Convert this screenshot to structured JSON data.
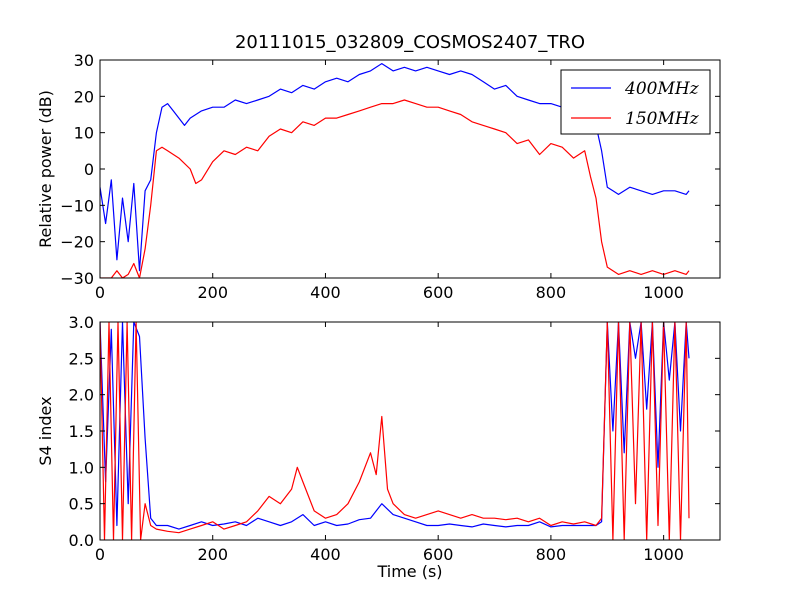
{
  "figure": {
    "title": "20111015_032809_COSMOS2407_TRO"
  },
  "chart_data": [
    {
      "type": "line",
      "title": "20111015_032809_COSMOS2407_TRO",
      "xlabel": "",
      "ylabel": "Relative power (dB)",
      "xlim": [
        0,
        1100
      ],
      "ylim": [
        -30,
        30
      ],
      "xticks": [
        0,
        200,
        400,
        600,
        800,
        1000
      ],
      "yticks": [
        -30,
        -20,
        -10,
        0,
        10,
        20,
        30
      ],
      "xtick_labels": [
        "0",
        "200",
        "400",
        "600",
        "800",
        "1000"
      ],
      "ytick_labels": [
        "−30",
        "−20",
        "−10",
        "0",
        "10",
        "20",
        "30"
      ],
      "grid": false,
      "legend_position": "top-right",
      "legend": [
        "400MHz",
        "150MHz"
      ],
      "series": [
        {
          "name": "400MHz",
          "color": "#0000ff",
          "x": [
            0,
            10,
            20,
            30,
            40,
            50,
            60,
            70,
            80,
            90,
            100,
            110,
            120,
            130,
            140,
            150,
            160,
            180,
            200,
            220,
            240,
            260,
            280,
            300,
            320,
            340,
            360,
            380,
            400,
            420,
            440,
            460,
            480,
            500,
            520,
            540,
            560,
            580,
            600,
            620,
            640,
            660,
            680,
            700,
            720,
            740,
            760,
            780,
            800,
            820,
            840,
            860,
            870,
            880,
            890,
            900,
            910,
            920,
            940,
            960,
            980,
            1000,
            1020,
            1040,
            1045
          ],
          "values": [
            -5,
            -15,
            -3,
            -25,
            -8,
            -20,
            -4,
            -28,
            -6,
            -3,
            10,
            17,
            18,
            16,
            14,
            12,
            14,
            16,
            17,
            17,
            19,
            18,
            19,
            20,
            22,
            21,
            23,
            22,
            24,
            25,
            24,
            26,
            27,
            29,
            27,
            28,
            27,
            28,
            27,
            26,
            27,
            26,
            24,
            22,
            23,
            20,
            19,
            18,
            18,
            17,
            16,
            15,
            14,
            12,
            5,
            -5,
            -6,
            -7,
            -5,
            -6,
            -7,
            -6,
            -6,
            -7,
            -6
          ]
        },
        {
          "name": "150MHz",
          "color": "#ff0000",
          "x": [
            0,
            10,
            20,
            30,
            40,
            50,
            60,
            70,
            80,
            90,
            100,
            110,
            120,
            140,
            160,
            170,
            180,
            200,
            220,
            240,
            260,
            280,
            300,
            320,
            340,
            360,
            380,
            400,
            420,
            440,
            460,
            480,
            500,
            520,
            540,
            560,
            580,
            600,
            620,
            640,
            660,
            680,
            700,
            720,
            740,
            760,
            780,
            800,
            820,
            840,
            860,
            870,
            880,
            890,
            900,
            910,
            920,
            940,
            960,
            980,
            1000,
            1020,
            1040,
            1045
          ],
          "values": [
            -30,
            -30,
            -30,
            -28,
            -30,
            -29,
            -26,
            -30,
            -22,
            -10,
            5,
            6,
            5,
            3,
            0,
            -4,
            -3,
            2,
            5,
            4,
            6,
            5,
            9,
            11,
            10,
            13,
            12,
            14,
            14,
            15,
            16,
            17,
            18,
            18,
            19,
            18,
            17,
            17,
            16,
            15,
            13,
            12,
            11,
            10,
            7,
            8,
            4,
            7,
            6,
            3,
            5,
            -2,
            -8,
            -20,
            -27,
            -28,
            -29,
            -28,
            -29,
            -28,
            -29,
            -28,
            -29,
            -28
          ]
        }
      ]
    },
    {
      "type": "line",
      "title": "",
      "xlabel": "Time (s)",
      "ylabel": "S4 index",
      "xlim": [
        0,
        1100
      ],
      "ylim": [
        0,
        3
      ],
      "xticks": [
        0,
        200,
        400,
        600,
        800,
        1000
      ],
      "yticks": [
        0,
        0.5,
        1,
        1.5,
        2,
        2.5,
        3
      ],
      "xtick_labels": [
        "0",
        "200",
        "400",
        "600",
        "800",
        "1000"
      ],
      "ytick_labels": [
        "0.0",
        "0.5",
        "1.0",
        "1.5",
        "2.0",
        "2.5",
        "3.0"
      ],
      "grid": false,
      "series": [
        {
          "name": "400MHz",
          "color": "#0000ff",
          "x": [
            0,
            10,
            20,
            30,
            40,
            50,
            60,
            70,
            80,
            90,
            100,
            120,
            140,
            160,
            180,
            200,
            220,
            240,
            260,
            280,
            300,
            320,
            340,
            360,
            380,
            400,
            420,
            440,
            460,
            480,
            500,
            520,
            540,
            560,
            580,
            600,
            620,
            640,
            660,
            680,
            700,
            720,
            740,
            760,
            780,
            800,
            820,
            840,
            860,
            880,
            890,
            900,
            910,
            920,
            930,
            940,
            950,
            960,
            970,
            980,
            990,
            1000,
            1010,
            1020,
            1030,
            1040,
            1045
          ],
          "values": [
            3,
            0.8,
            2.9,
            0.2,
            3,
            0.5,
            3,
            2.8,
            1.4,
            0.3,
            0.2,
            0.2,
            0.15,
            0.2,
            0.25,
            0.2,
            0.22,
            0.25,
            0.2,
            0.3,
            0.25,
            0.2,
            0.25,
            0.35,
            0.2,
            0.25,
            0.2,
            0.22,
            0.28,
            0.3,
            0.5,
            0.35,
            0.3,
            0.25,
            0.2,
            0.2,
            0.22,
            0.2,
            0.18,
            0.22,
            0.2,
            0.18,
            0.2,
            0.2,
            0.25,
            0.18,
            0.2,
            0.2,
            0.2,
            0.2,
            0.25,
            3,
            1.5,
            3,
            1.2,
            3,
            2.5,
            3,
            1.8,
            3,
            1.0,
            3,
            2.2,
            3,
            1.5,
            3,
            2.5
          ]
        },
        {
          "name": "150MHz",
          "color": "#ff0000",
          "x": [
            0,
            8,
            16,
            24,
            32,
            40,
            48,
            56,
            64,
            72,
            80,
            90,
            100,
            120,
            140,
            160,
            180,
            200,
            220,
            240,
            260,
            280,
            300,
            320,
            340,
            350,
            360,
            380,
            400,
            420,
            440,
            460,
            480,
            490,
            500,
            510,
            520,
            540,
            560,
            580,
            600,
            620,
            640,
            660,
            680,
            700,
            720,
            740,
            760,
            780,
            800,
            820,
            840,
            860,
            880,
            890,
            900,
            910,
            920,
            930,
            940,
            950,
            960,
            970,
            980,
            990,
            1000,
            1010,
            1020,
            1030,
            1040,
            1045
          ],
          "values": [
            3,
            0,
            3,
            0,
            3,
            0,
            3,
            0,
            3,
            0,
            0.5,
            0.2,
            0.15,
            0.12,
            0.1,
            0.15,
            0.2,
            0.25,
            0.15,
            0.2,
            0.25,
            0.4,
            0.6,
            0.5,
            0.7,
            1.0,
            0.8,
            0.4,
            0.3,
            0.35,
            0.5,
            0.8,
            1.2,
            0.9,
            1.7,
            0.7,
            0.5,
            0.35,
            0.3,
            0.35,
            0.4,
            0.35,
            0.3,
            0.35,
            0.3,
            0.3,
            0.28,
            0.3,
            0.25,
            0.3,
            0.2,
            0.25,
            0.22,
            0.25,
            0.2,
            0.3,
            3,
            0,
            3,
            0,
            3,
            0.5,
            3,
            0,
            3,
            0.2,
            3,
            0,
            3,
            0,
            3,
            0.3
          ]
        }
      ]
    }
  ]
}
